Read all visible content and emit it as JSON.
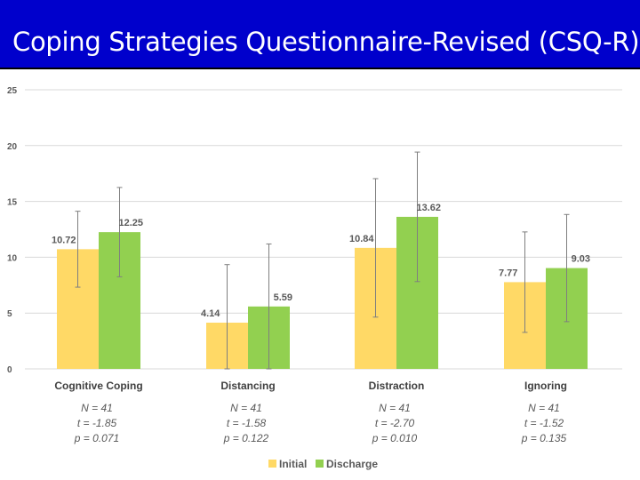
{
  "title": "Coping Strategies Questionnaire-Revised (CSQ-R)",
  "colors": {
    "title_bg": "#0000cc",
    "initial": "#ffd966",
    "discharge": "#92d050"
  },
  "chart_data": {
    "type": "bar",
    "title": "Coping Strategies Questionnaire-Revised (CSQ-R)",
    "xlabel": "",
    "ylabel": "",
    "ylim": [
      0,
      25
    ],
    "yticks": [
      "0",
      "5",
      "10",
      "15",
      "20",
      "25"
    ],
    "grid": true,
    "legend_position": "bottom",
    "categories": [
      "Cognitive Coping",
      "Distancing",
      "Distraction",
      "Ignoring"
    ],
    "series": [
      {
        "name": "Initial",
        "values": [
          10.72,
          4.14,
          10.84,
          7.77
        ],
        "labels": [
          "10.72",
          "4.14",
          "10.84",
          "7.77"
        ],
        "error": [
          3.4,
          5.2,
          6.2,
          4.5
        ]
      },
      {
        "name": "Discharge",
        "values": [
          12.25,
          5.59,
          13.62,
          9.03
        ],
        "labels": [
          "12.25",
          "5.59",
          "13.62",
          "9.03"
        ],
        "error": [
          4.0,
          5.6,
          5.8,
          4.8
        ]
      }
    ],
    "annotations": [
      {
        "category": "Cognitive Coping",
        "lines": [
          "N = 41",
          "t = -1.85",
          "p = 0.071"
        ]
      },
      {
        "category": "Distancing",
        "lines": [
          "N = 41",
          "t = -1.58",
          "p = 0.122"
        ]
      },
      {
        "category": "Distraction",
        "lines": [
          "N = 41",
          "t = -2.70",
          "p = 0.010"
        ]
      },
      {
        "category": "Ignoring",
        "lines": [
          "N = 41",
          "t = -1.52",
          "p = 0.135"
        ]
      }
    ]
  }
}
